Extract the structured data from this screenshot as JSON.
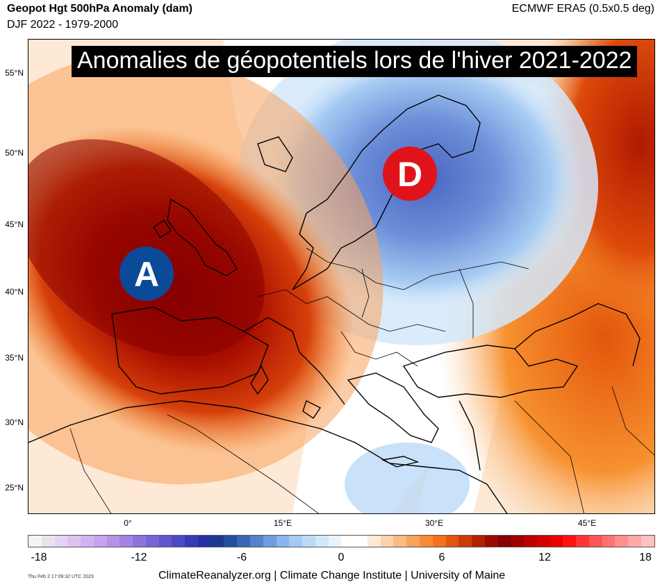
{
  "header": {
    "title": "Geopot Hgt 500hPa Anomaly (dam)",
    "subtitle": "DJF 2022 - 1979-2000",
    "source": "ECMWF ERA5 (0.5x0.5 deg)"
  },
  "banner": "Anomalies de géopotentiels lors de l'hiver 2021-2022",
  "map": {
    "lat_labels": [
      "55°N",
      "50°N",
      "45°N",
      "40°N",
      "35°N",
      "30°N",
      "25°N"
    ],
    "lon_labels": [
      "0°",
      "15°E",
      "30°E",
      "45°E"
    ],
    "high_marker": "A",
    "low_marker": "D",
    "colors": {
      "high_core": "#8b0000",
      "high_edge": "#ff7f0e",
      "low_core": "#4a64c0",
      "low_edge": "#a8d0f5",
      "marker_high": "#0b4a99",
      "marker_low": "#e0131b"
    }
  },
  "colorbar": {
    "ticks": [
      "-18",
      "-12",
      "-6",
      "0",
      "6",
      "12",
      "18"
    ],
    "colors": [
      "#f4f4f4",
      "#e9e2ef",
      "#e4d3f2",
      "#dcc3f3",
      "#d2b3f2",
      "#c5a3ef",
      "#b693ea",
      "#a383e4",
      "#8e73dd",
      "#7864d6",
      "#6156ce",
      "#4a48c4",
      "#353ab6",
      "#2530a4",
      "#1b3a8f",
      "#244f9f",
      "#3b67b5",
      "#5482cc",
      "#6e9ddf",
      "#88b6ec",
      "#a2caf4",
      "#bbdaf8",
      "#d3e7fb",
      "#e8f2fd",
      "#ffffff",
      "#ffffff",
      "#fde9d6",
      "#fcd3ad",
      "#fbbb85",
      "#f9a25c",
      "#f78a35",
      "#f2711a",
      "#e0560e",
      "#cc3a05",
      "#b32000",
      "#9a0a00",
      "#850000",
      "#a00000",
      "#bc0000",
      "#d40000",
      "#e90000",
      "#ff1010",
      "#ff3535",
      "#ff5555",
      "#ff7272",
      "#ff8e8e",
      "#ffa8a8",
      "#ffc0c0"
    ]
  },
  "footer": {
    "timestamp": "Thu Feb  2 17:09:32 UTC 2023",
    "credits": "ClimateReanalyzer.org | Climate Change Institute | University of Maine"
  }
}
